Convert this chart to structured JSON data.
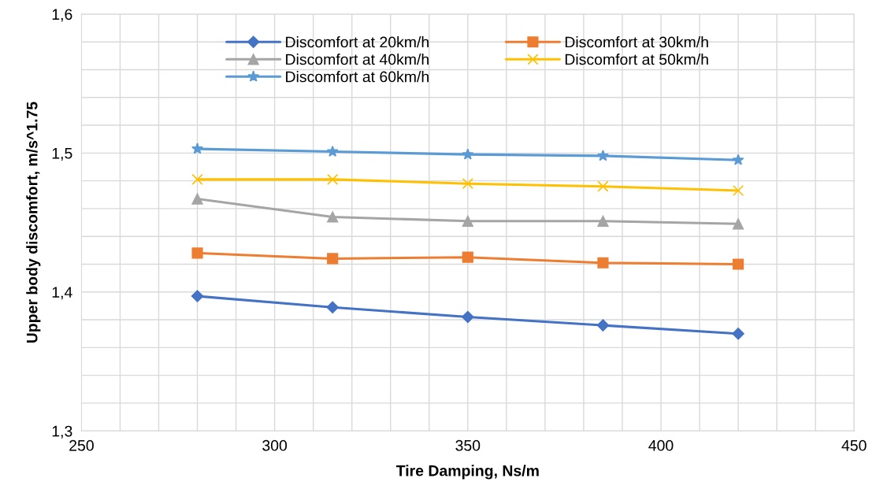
{
  "chart_data": {
    "type": "line",
    "xlabel": "Tire Damping, Ns/m",
    "ylabel": "Upper body discomfort, m/s^1.75",
    "x": [
      280,
      315,
      350,
      385,
      420
    ],
    "series": [
      {
        "name": "Discomfort at 20km/h",
        "color": "#4472c4",
        "marker": "diamond",
        "values": [
          1.397,
          1.389,
          1.382,
          1.376,
          1.37
        ]
      },
      {
        "name": "Discomfort at 30km/h",
        "color": "#ed7d31",
        "marker": "square",
        "values": [
          1.428,
          1.424,
          1.425,
          1.421,
          1.42
        ]
      },
      {
        "name": "Discomfort at 40km/h",
        "color": "#a5a5a5",
        "marker": "triangle",
        "values": [
          1.467,
          1.454,
          1.451,
          1.451,
          1.449
        ]
      },
      {
        "name": "Discomfort at 50km/h",
        "color": "#ffc000",
        "marker": "cross",
        "values": [
          1.481,
          1.481,
          1.478,
          1.476,
          1.473
        ]
      },
      {
        "name": "Discomfort at 60km/h",
        "color": "#5b9bd5",
        "marker": "star",
        "values": [
          1.503,
          1.501,
          1.499,
          1.498,
          1.495
        ]
      }
    ],
    "xlim": [
      250,
      450
    ],
    "xticks": [
      250,
      300,
      350,
      400,
      450
    ],
    "ylim": [
      1.3,
      1.6
    ],
    "yticks": [
      {
        "value": 1.3,
        "label": "1,3"
      },
      {
        "value": 1.4,
        "label": "1,4"
      },
      {
        "value": 1.5,
        "label": "1,5"
      },
      {
        "value": 1.6,
        "label": "1,6"
      }
    ],
    "grid": true,
    "legend": "top"
  }
}
